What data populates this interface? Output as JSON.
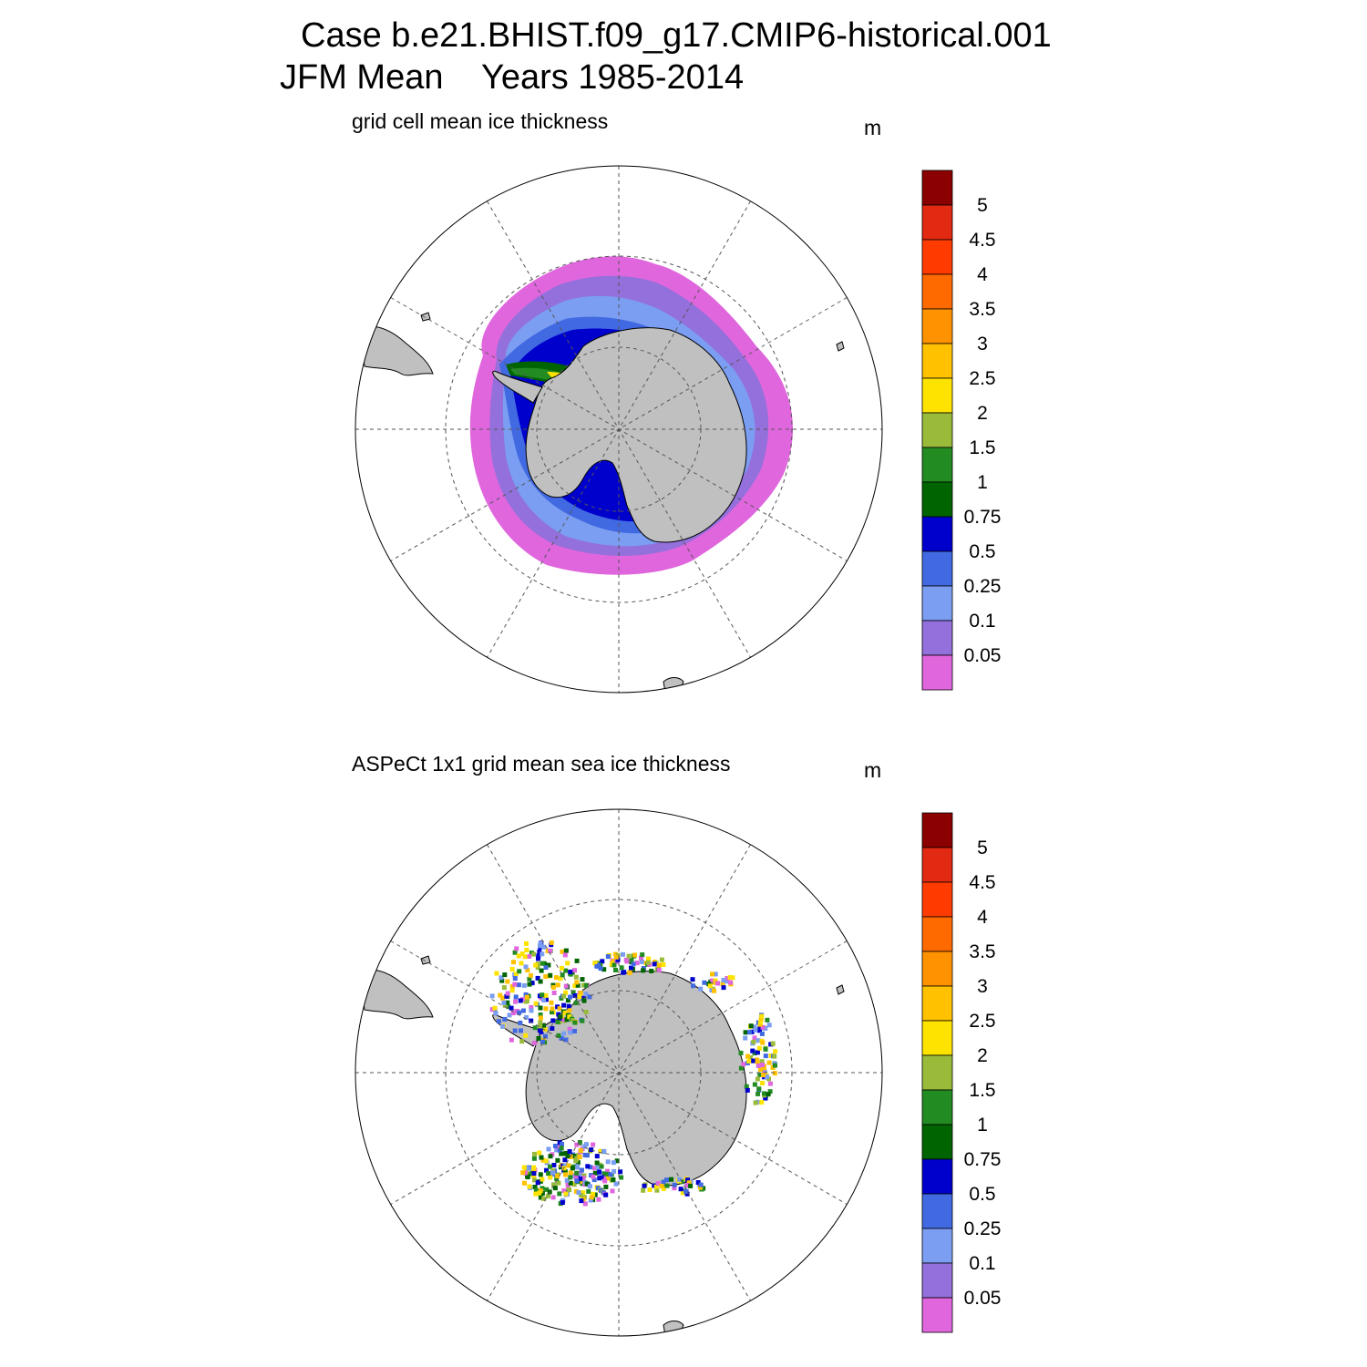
{
  "title_line1": "Case b.e21.BHIST.f09_g17.CMIP6-historical.001",
  "title_line2": "JFM Mean    Years 1985-2014",
  "panels": [
    {
      "title": "grid cell mean ice thickness",
      "units": "m"
    },
    {
      "title": "ASPeCt 1x1 grid mean sea ice thickness",
      "units": "m"
    }
  ],
  "colorbar": {
    "labels": [
      "5",
      "4.5",
      "4",
      "3.5",
      "3",
      "2.5",
      "2",
      "1.5",
      "1",
      "0.75",
      "0.5",
      "0.25",
      "0.1",
      "0.05"
    ],
    "colors": [
      "#8b0000",
      "#e22a12",
      "#ff3b00",
      "#ff6a00",
      "#ff9200",
      "#ffc100",
      "#ffe300",
      "#9abb3a",
      "#228b22",
      "#006400",
      "#0000cd",
      "#4169e1",
      "#7b9ef2",
      "#9370db",
      "#e066dd"
    ]
  },
  "colors": {
    "land": "#c0c0c0",
    "grid": "#555555",
    "frame": "#000000"
  }
}
